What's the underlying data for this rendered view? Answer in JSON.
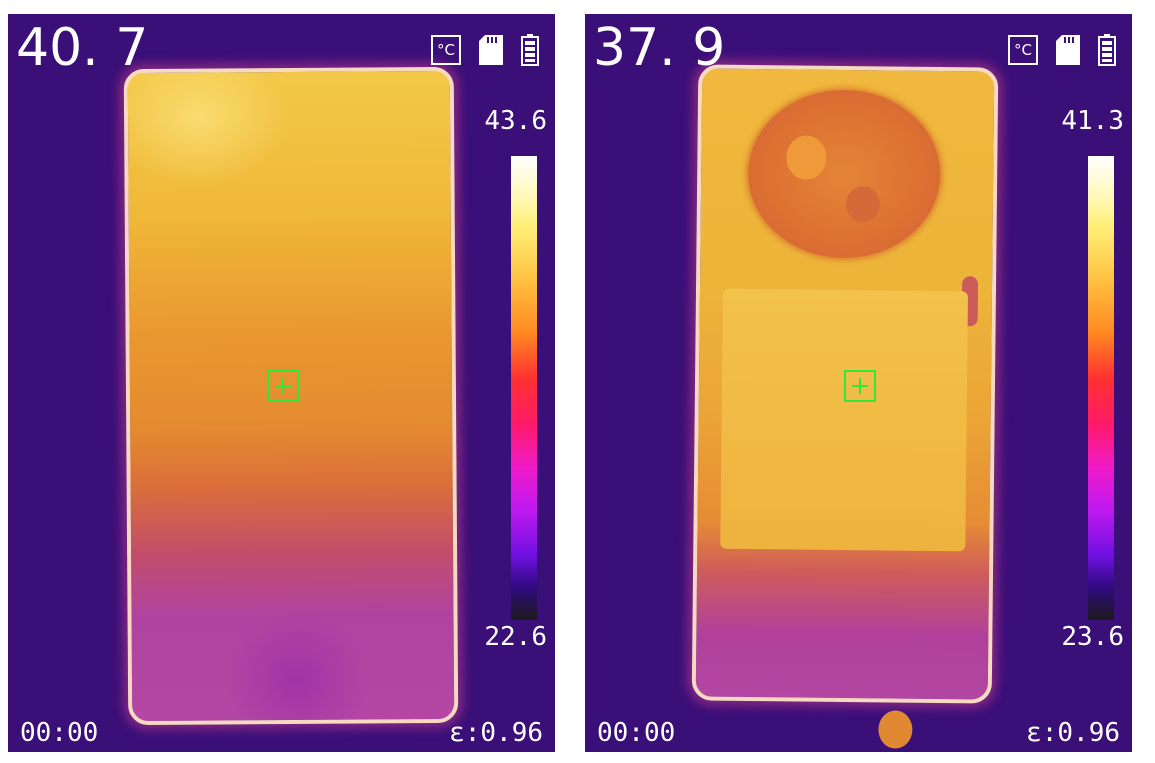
{
  "panels": [
    {
      "center_temp": "40. 7",
      "unit_icon": "°C",
      "scale_max": "43.6",
      "scale_min": "22.6",
      "time": "00:00",
      "emissivity": "ε:0.96"
    },
    {
      "center_temp": "37. 9",
      "unit_icon": "°C",
      "scale_max": "41.3",
      "scale_min": "23.6",
      "time": "00:00",
      "emissivity": "ε:0.96"
    }
  ],
  "icons": [
    "celsius-icon",
    "sd-card-icon",
    "battery-icon",
    "crosshair-icon"
  ],
  "colors": {
    "background": "#3b0f78",
    "crosshair": "#2ee83a",
    "text": "#ffffff"
  }
}
